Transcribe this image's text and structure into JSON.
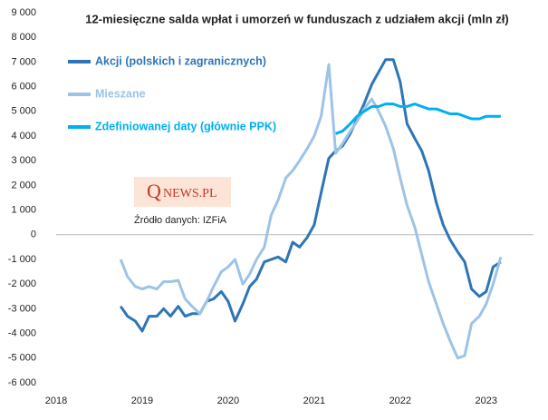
{
  "chart_data": {
    "type": "line",
    "title": "12-miesięczne salda wpłat i umorzeń w funduszach z udziałem akcji (mln zł)",
    "annotation": "Źródło danych: IZFiA",
    "logo_initial": "Q",
    "logo_text": "NEWS.PL",
    "x": [
      2018.75,
      2018.83,
      2018.92,
      2019.0,
      2019.08,
      2019.17,
      2019.25,
      2019.33,
      2019.42,
      2019.5,
      2019.58,
      2019.67,
      2019.75,
      2019.83,
      2019.92,
      2020.0,
      2020.08,
      2020.17,
      2020.25,
      2020.33,
      2020.42,
      2020.5,
      2020.58,
      2020.67,
      2020.75,
      2020.83,
      2020.92,
      2021.0,
      2021.08,
      2021.17,
      2021.25,
      2021.33,
      2021.42,
      2021.5,
      2021.58,
      2021.67,
      2021.75,
      2021.83,
      2021.92,
      2022.0,
      2022.08,
      2022.17,
      2022.25,
      2022.33,
      2022.42,
      2022.5,
      2022.58,
      2022.67,
      2022.75,
      2022.83,
      2022.92,
      2023.0,
      2023.08,
      2023.17
    ],
    "series": [
      {
        "name": "Akcji (polskich i zagranicznych)",
        "color": "#2e75b6",
        "values": [
          -2900,
          -3300,
          -3500,
          -3900,
          -3300,
          -3300,
          -3000,
          -3300,
          -2900,
          -3300,
          -3200,
          -3200,
          -2700,
          -2600,
          -2300,
          -2700,
          -3500,
          -2800,
          -2100,
          -1800,
          -1100,
          -1000,
          -900,
          -1100,
          -300,
          -500,
          -100,
          400,
          1700,
          3100,
          3400,
          3600,
          4100,
          4700,
          5300,
          6100,
          6600,
          7100,
          7100,
          6200,
          4500,
          3900,
          3400,
          2600,
          1300,
          400,
          -200,
          -700,
          -1100,
          -2200,
          -2500,
          -2300,
          -1300,
          -1100
        ]
      },
      {
        "name": "Mieszane",
        "color": "#9dc3e6",
        "values": [
          -1000,
          -1700,
          -2100,
          -2200,
          -2100,
          -2200,
          -1900,
          -1900,
          -1850,
          -2600,
          -2900,
          -3200,
          -2700,
          -2100,
          -1500,
          -1300,
          -1000,
          -2000,
          -1600,
          -1000,
          -500,
          800,
          1400,
          2300,
          2600,
          3000,
          3500,
          4000,
          4800,
          6900,
          3300,
          3700,
          4200,
          4600,
          5100,
          5500,
          5000,
          4400,
          3500,
          2300,
          1200,
          300,
          -800,
          -1900,
          -2800,
          -3600,
          -4300,
          -5000,
          -4900,
          -3600,
          -3300,
          -2800,
          -2000,
          -900
        ]
      },
      {
        "name": "Zdefiniowanej daty (głównie PPK)",
        "color": "#00b0f0",
        "values": [
          null,
          null,
          null,
          null,
          null,
          null,
          null,
          null,
          null,
          null,
          null,
          null,
          null,
          null,
          null,
          null,
          null,
          null,
          null,
          null,
          null,
          null,
          null,
          null,
          null,
          null,
          null,
          null,
          null,
          null,
          4100,
          4200,
          4500,
          4800,
          5000,
          5200,
          5200,
          5300,
          5300,
          5200,
          5200,
          5300,
          5200,
          5100,
          5100,
          5000,
          4900,
          4900,
          4800,
          4700,
          4700,
          4800,
          4800,
          4800
        ]
      }
    ],
    "xlim": [
      2018,
      2023.55
    ],
    "xticks": [
      2018,
      2019,
      2020,
      2021,
      2022,
      2023
    ],
    "ylim": [
      -6000,
      9000
    ],
    "yticks": [
      {
        "value": -6000,
        "label": "-6 000"
      },
      {
        "value": -5000,
        "label": "-5 000"
      },
      {
        "value": -4000,
        "label": "-4 000"
      },
      {
        "value": -3000,
        "label": "-3 000"
      },
      {
        "value": -2000,
        "label": "-2 000"
      },
      {
        "value": -1000,
        "label": "-1 000"
      },
      0,
      {
        "value": 1000,
        "label": "1 000"
      },
      {
        "value": 2000,
        "label": "2 000"
      },
      {
        "value": 3000,
        "label": "3 000"
      },
      {
        "value": 4000,
        "label": "4 000"
      },
      {
        "value": 5000,
        "label": "5 000"
      },
      {
        "value": 6000,
        "label": "6 000"
      },
      {
        "value": 7000,
        "label": "7 000"
      },
      {
        "value": 8000,
        "label": "8 000"
      },
      {
        "value": 9000,
        "label": "9 000"
      }
    ],
    "grid": false
  }
}
